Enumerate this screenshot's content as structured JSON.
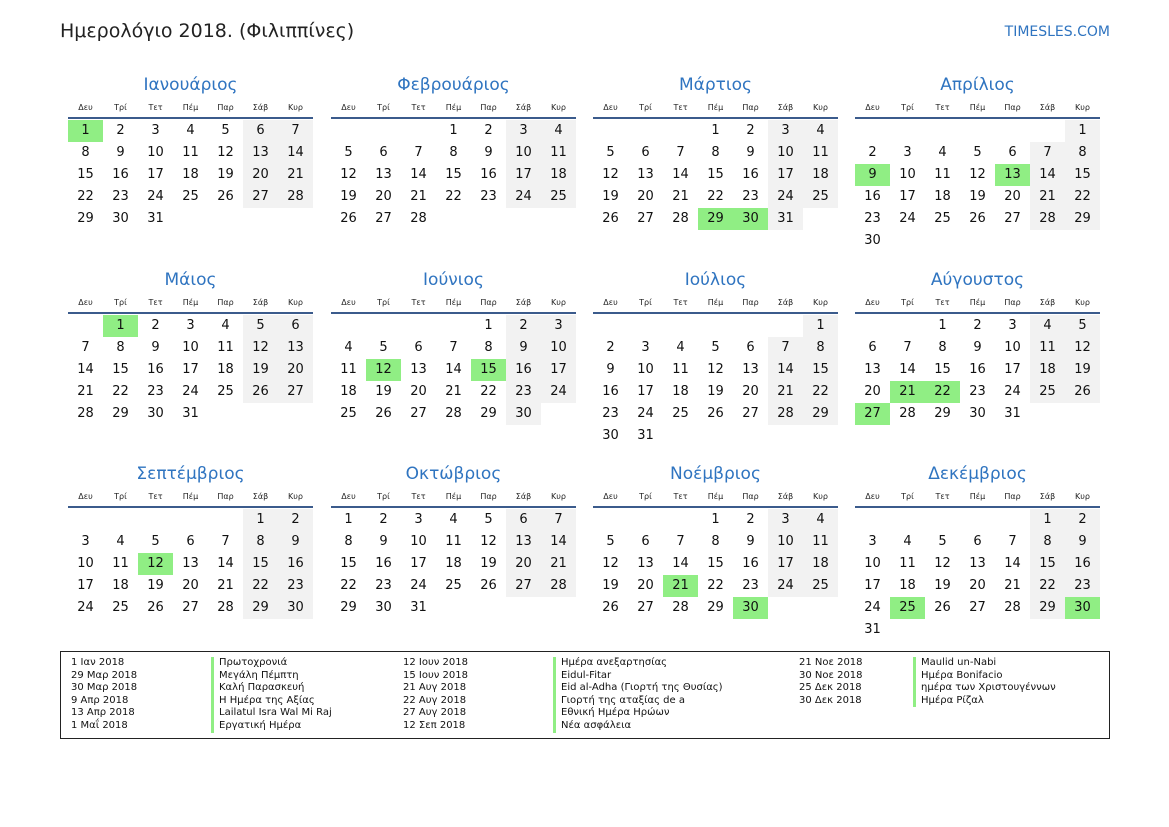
{
  "header": {
    "title": "Ημερολόγιο 2018. (Φιλιππίνες)",
    "site": "TIMESLES.COM"
  },
  "weekdays": [
    "Δευ",
    "Τρί",
    "Τετ",
    "Πέμ",
    "Παρ",
    "Σάβ",
    "Κυρ"
  ],
  "colors": {
    "accent": "#2f74c0",
    "holiday": "#90ee84",
    "weekend": "#f2f2f2"
  },
  "months": [
    {
      "name": "Ιανουάριος",
      "start_weekday": 1,
      "days": 31,
      "holidays": [
        1
      ]
    },
    {
      "name": "Φεβρουάριος",
      "start_weekday": 4,
      "days": 28,
      "holidays": []
    },
    {
      "name": "Μάρτιος",
      "start_weekday": 4,
      "days": 31,
      "holidays": [
        29,
        30
      ]
    },
    {
      "name": "Απρίλιος",
      "start_weekday": 7,
      "days": 30,
      "holidays": [
        9,
        13
      ]
    },
    {
      "name": "Μάιος",
      "start_weekday": 2,
      "days": 31,
      "holidays": [
        1
      ]
    },
    {
      "name": "Ιούνιος",
      "start_weekday": 5,
      "days": 30,
      "holidays": [
        12,
        15
      ]
    },
    {
      "name": "Ιούλιος",
      "start_weekday": 7,
      "days": 31,
      "holidays": []
    },
    {
      "name": "Αύγουστος",
      "start_weekday": 3,
      "days": 31,
      "holidays": [
        21,
        22,
        27
      ]
    },
    {
      "name": "Σεπτέμβριος",
      "start_weekday": 6,
      "days": 30,
      "holidays": [
        12
      ]
    },
    {
      "name": "Οκτώβριος",
      "start_weekday": 1,
      "days": 31,
      "holidays": []
    },
    {
      "name": "Νοέμβριος",
      "start_weekday": 4,
      "days": 30,
      "holidays": [
        21,
        30
      ]
    },
    {
      "name": "Δεκέμβριος",
      "start_weekday": 6,
      "days": 31,
      "holidays": [
        25,
        30
      ]
    }
  ],
  "legend": [
    {
      "date": "1 Ιαν 2018",
      "name": "Πρωτοχρονιά"
    },
    {
      "date": "29 Μαρ 2018",
      "name": "Μεγάλη Πέμπτη"
    },
    {
      "date": "30 Μαρ 2018",
      "name": "Καλή Παρασκευή"
    },
    {
      "date": "9 Απρ 2018",
      "name": "Η Ημέρα της Αξίας"
    },
    {
      "date": "13 Απρ 2018",
      "name": "Lailatul Isra Wal Mi Raj"
    },
    {
      "date": "1 Μαΐ 2018",
      "name": "Εργατική Ημέρα"
    },
    {
      "date": "12 Ιουν 2018",
      "name": "Ημέρα ανεξαρτησίας"
    },
    {
      "date": "15 Ιουν 2018",
      "name": "Eidul-Fitar"
    },
    {
      "date": "21 Αυγ 2018",
      "name": "Eid al-Adha (Γιορτή της Θυσίας)"
    },
    {
      "date": "22 Αυγ 2018",
      "name": "Γιορτή της αταξίας de a"
    },
    {
      "date": "27 Αυγ 2018",
      "name": "Εθνική Ημέρα Ηρώων"
    },
    {
      "date": "12 Σεπ 2018",
      "name": "Νέα ασφάλεια"
    },
    {
      "date": "21 Νοε 2018",
      "name": "Maulid un-Nabi"
    },
    {
      "date": "30 Νοε 2018",
      "name": "Ημέρα Bonifacio"
    },
    {
      "date": "25 Δεκ 2018",
      "name": "ημέρα των Χριστουγέννων"
    },
    {
      "date": "30 Δεκ 2018",
      "name": "Ημέρα Ρίζαλ"
    }
  ]
}
